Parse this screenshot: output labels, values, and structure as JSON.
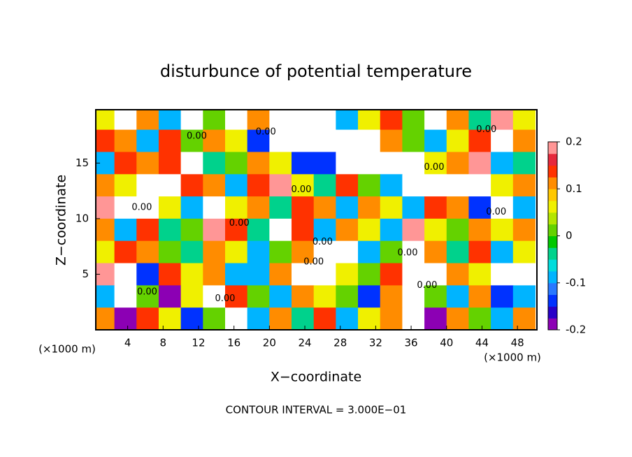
{
  "chart_data": {
    "type": "heatmap",
    "title": "disturbunce of potential temperature",
    "xlabel": "X−coordinate",
    "ylabel": "Z−coordinate",
    "x_unit": "(×1000 m)",
    "y_unit": "(×1000 m)",
    "footer": "CONTOUR INTERVAL = 3.000E−01",
    "xlim": [
      0.4,
      50.2
    ],
    "ylim": [
      0,
      19.8
    ],
    "xticks": [
      4,
      8,
      12,
      16,
      20,
      24,
      28,
      32,
      36,
      40,
      44,
      48
    ],
    "yticks": [
      5,
      10,
      15
    ],
    "x": [
      1.25,
      3.75,
      6.25,
      8.75,
      11.25,
      13.75,
      16.25,
      18.75,
      21.25,
      23.75,
      26.25,
      28.75,
      31.25,
      33.75,
      36.25,
      38.75,
      41.25,
      43.75,
      46.25,
      48.75
    ],
    "z": [
      19,
      17,
      15,
      13,
      11,
      9,
      7,
      5,
      3,
      1
    ],
    "values": [
      [
        0.05,
        0.3,
        0.1,
        -0.1,
        0.3,
        0.02,
        -0.3,
        0.1,
        0.3,
        0.3,
        0.3,
        -0.1,
        0.05,
        0.15,
        0.0,
        0.3,
        0.1,
        -0.05,
        0.2,
        0.05
      ],
      [
        0.15,
        0.1,
        -0.1,
        0.15,
        0.0,
        0.1,
        0.05,
        -0.15,
        -0.3,
        -0.3,
        -0.3,
        -0.3,
        -0.3,
        0.1,
        0.0,
        -0.1,
        0.05,
        0.15,
        0.3,
        0.1
      ],
      [
        -0.1,
        0.15,
        0.1,
        0.15,
        0.3,
        -0.05,
        0.0,
        0.1,
        0.05,
        -0.15,
        -0.15,
        -0.3,
        -0.3,
        -0.3,
        -0.3,
        0.05,
        0.1,
        0.2,
        -0.1,
        -0.05
      ],
      [
        0.1,
        0.05,
        -0.3,
        0.3,
        0.15,
        0.1,
        -0.1,
        0.15,
        0.2,
        0.05,
        -0.05,
        0.15,
        0.0,
        -0.1,
        0.3,
        0.3,
        -0.3,
        -0.3,
        0.05,
        0.1
      ],
      [
        0.2,
        -0.3,
        -0.3,
        0.05,
        -0.1,
        -0.3,
        0.05,
        0.1,
        -0.05,
        0.15,
        0.1,
        -0.1,
        0.1,
        0.05,
        -0.1,
        0.15,
        0.1,
        -0.15,
        -0.3,
        -0.1
      ],
      [
        0.1,
        -0.1,
        0.15,
        -0.05,
        0.0,
        0.2,
        0.15,
        -0.05,
        -0.3,
        0.15,
        -0.1,
        0.1,
        0.05,
        -0.1,
        0.2,
        0.05,
        0.0,
        0.1,
        0.05,
        0.1
      ],
      [
        0.05,
        0.15,
        0.1,
        0.0,
        -0.05,
        0.1,
        0.05,
        -0.1,
        0.0,
        0.1,
        -0.3,
        -0.3,
        -0.1,
        0.0,
        0.3,
        0.1,
        -0.05,
        0.15,
        -0.1,
        0.05
      ],
      [
        0.2,
        0.3,
        -0.15,
        0.15,
        0.05,
        0.1,
        -0.1,
        -0.1,
        0.1,
        0.3,
        -0.3,
        0.05,
        0.0,
        0.15,
        0.3,
        -0.3,
        0.1,
        0.05,
        0.3,
        -0.3
      ],
      [
        -0.1,
        0.3,
        0.0,
        -0.2,
        0.05,
        0.3,
        0.15,
        0.0,
        -0.1,
        0.1,
        0.05,
        0.0,
        -0.15,
        0.1,
        0.3,
        0.0,
        -0.1,
        0.1,
        -0.15,
        -0.1
      ],
      [
        0.1,
        -0.2,
        0.15,
        0.05,
        -0.15,
        0.0,
        0.3,
        -0.1,
        0.1,
        -0.05,
        0.15,
        -0.1,
        0.05,
        0.1,
        0.3,
        -0.2,
        0.1,
        0.0,
        -0.1,
        0.1
      ]
    ],
    "colorbar": {
      "lim": [
        -0.2,
        0.2
      ],
      "ticks": [
        -0.2,
        -0.1,
        0,
        0.1,
        0.2
      ],
      "colors": [
        "#8c00b4",
        "#2800c8",
        "#0032ff",
        "#2878ff",
        "#00b4ff",
        "#00dcdc",
        "#00d28c",
        "#00c800",
        "#64d200",
        "#b4e600",
        "#f0f000",
        "#ffc800",
        "#ff8c00",
        "#ff3200",
        "#e6283c",
        "#ff9696"
      ],
      "out_of_range_color": "#ffffff"
    },
    "contour_labels": [
      {
        "text": "0.00",
        "x": 11.8,
        "z": 17.4
      },
      {
        "text": "0.00",
        "x": 19.6,
        "z": 17.8
      },
      {
        "text": "0.00",
        "x": 44.5,
        "z": 18.0
      },
      {
        "text": "0.00",
        "x": 38.6,
        "z": 14.6
      },
      {
        "text": "0.00",
        "x": 23.6,
        "z": 12.6
      },
      {
        "text": "0.00",
        "x": 5.6,
        "z": 11.0
      },
      {
        "text": "0.00",
        "x": 16.6,
        "z": 9.6
      },
      {
        "text": "0.00",
        "x": 45.6,
        "z": 10.6
      },
      {
        "text": "0.00",
        "x": 26.0,
        "z": 7.9
      },
      {
        "text": "0.00",
        "x": 25.0,
        "z": 6.1
      },
      {
        "text": "0.00",
        "x": 35.6,
        "z": 6.9
      },
      {
        "text": "0.00",
        "x": 37.8,
        "z": 4.0
      },
      {
        "text": "0.00",
        "x": 6.2,
        "z": 3.4
      },
      {
        "text": "0.00",
        "x": 15.0,
        "z": 2.8
      }
    ]
  }
}
